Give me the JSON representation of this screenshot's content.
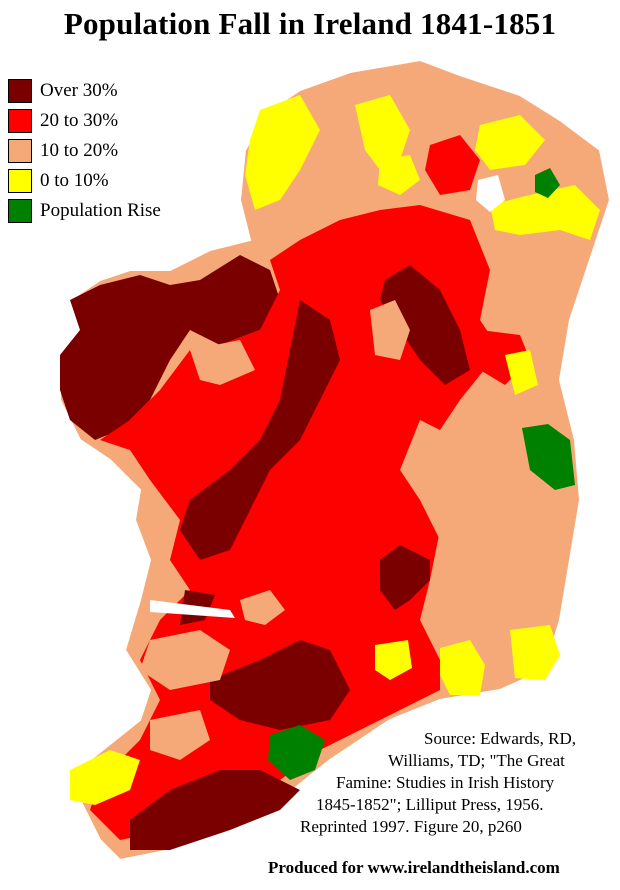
{
  "title": "Population Fall in Ireland 1841-1851",
  "legend": [
    {
      "label": "Over 30%",
      "color": "#7a0000"
    },
    {
      "label": "20 to 30%",
      "color": "#fd0000"
    },
    {
      "label": "10 to 20%",
      "color": "#f6a978"
    },
    {
      "label": "0 to 10%",
      "color": "#ffff00"
    },
    {
      "label": "Population Rise",
      "color": "#008000"
    }
  ],
  "source_lines": [
    "Source: Edwards, RD,",
    "Williams, TD; \"The Great",
    "Famine: Studies in Irish History",
    "1845-1852\"; Lilliput Press, 1956.",
    "Reprinted 1997. Figure 20, p260"
  ],
  "credit": "Produced for www.irelandtheisland.com"
}
